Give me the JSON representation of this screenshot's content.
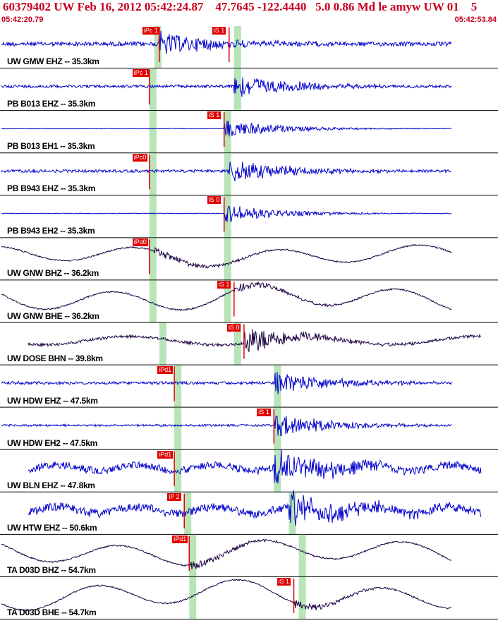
{
  "header": {
    "title": "60379402 UW Feb 16, 2012 05:42:24.87    47.7645 -122.4440   5.0 0.86 Md le amyw UW 01    5",
    "start_time": "05:42:20.79",
    "end_time": "05:42:53.84"
  },
  "colors": {
    "title": "#c8001e",
    "trace_blue": "#0000cc",
    "trace_dark": "#1a0040",
    "pick_red": "#e00000",
    "window_green": "#b8e4b8",
    "divider": "#000000"
  },
  "traces": [
    {
      "label": "UW GMW EHZ -- 35.3km",
      "color": "blue",
      "type": "hf",
      "amp": 6,
      "burst": 0.32,
      "picks": [
        "iPc 1",
        "iS 1"
      ],
      "pickT": [
        0.32,
        0.46
      ],
      "green": [
        0.31,
        0.47
      ]
    },
    {
      "label": "PB B013 EHZ -- 35.3km",
      "color": "blue",
      "type": "hf",
      "amp": 4,
      "burst": 0.47,
      "picks": [
        "iPc 1"
      ],
      "pickT": [
        0.3
      ],
      "green": [
        0.3,
        0.47
      ]
    },
    {
      "label": "PB B013 EH1 -- 35.3km",
      "color": "blue",
      "type": "flat",
      "amp": 1,
      "burst": 0.45,
      "picks": [
        "iS 1"
      ],
      "pickT": [
        0.45
      ],
      "green": [
        0.3,
        0.45
      ]
    },
    {
      "label": "PB B943 EHZ -- 35.3km",
      "color": "blue",
      "type": "hf",
      "amp": 4,
      "burst": 0.46,
      "picks": [
        "iPc0"
      ],
      "pickT": [
        0.3
      ],
      "green": [
        0.3,
        0.45
      ]
    },
    {
      "label": "PB B943 EH2 -- 35.3km",
      "color": "blue",
      "type": "flat",
      "amp": 1.5,
      "burst": 0.45,
      "picks": [
        "iS 0"
      ],
      "pickT": [
        0.45
      ],
      "green": [
        0.3,
        0.45
      ]
    },
    {
      "label": "UW GNW BHZ -- 36.2km",
      "color": "dark",
      "type": "lp",
      "amp": 14,
      "burst": 0.31,
      "picks": [
        "iPd0"
      ],
      "pickT": [
        0.3
      ],
      "green": [
        0.3,
        0.45
      ]
    },
    {
      "label": "UW GNW BHE -- 36.2km",
      "color": "dark",
      "type": "lp",
      "amp": 18,
      "burst": 0.47,
      "picks": [
        "iS 1"
      ],
      "pickT": [
        0.47
      ],
      "green": [
        0.3,
        0.45
      ]
    },
    {
      "label": "UW DOSE BHN -- 39.8km",
      "color": "dark",
      "type": "mixed",
      "amp": 6,
      "burst": 0.49,
      "picks": [
        "iS 0"
      ],
      "pickT": [
        0.49
      ],
      "green": [
        0.32,
        0.47
      ]
    },
    {
      "label": "UW HDW EHZ -- 47.5km",
      "color": "blue",
      "type": "hf",
      "amp": 4,
      "burst": 0.55,
      "picks": [
        "iPd1"
      ],
      "pickT": [
        0.35
      ],
      "green": [
        0.35,
        0.55
      ]
    },
    {
      "label": "UW HDW EH2 -- 47.5km",
      "color": "blue",
      "type": "hf",
      "amp": 3,
      "burst": 0.55,
      "picks": [
        "iS 1"
      ],
      "pickT": [
        0.55
      ],
      "green": [
        0.35,
        0.55
      ]
    },
    {
      "label": "UW BLN EHZ -- 47.8km",
      "color": "blue",
      "type": "noisy",
      "amp": 10,
      "burst": 0.55,
      "picks": [
        "iPd1"
      ],
      "pickT": [
        0.35
      ],
      "green": [
        0.35,
        0.55
      ]
    },
    {
      "label": "UW HTW EHZ -- 50.6km",
      "color": "blue",
      "type": "noisy",
      "amp": 12,
      "burst": 0.58,
      "picks": [
        "iP 2"
      ],
      "pickT": [
        0.37
      ],
      "green": [
        0.37,
        0.58
      ]
    },
    {
      "label": "TA D03D BHZ -- 54.7km",
      "color": "dark",
      "type": "lp",
      "amp": 18,
      "burst": 0.38,
      "picks": [
        "iPd1"
      ],
      "pickT": [
        0.38
      ],
      "green": [
        0.38,
        0.6
      ]
    },
    {
      "label": "TA D03D BHE -- 54.7km",
      "color": "dark",
      "type": "lp",
      "amp": 20,
      "burst": 0.59,
      "picks": [
        "iS 1"
      ],
      "pickT": [
        0.59
      ],
      "green": [
        0.38,
        0.6
      ]
    }
  ]
}
